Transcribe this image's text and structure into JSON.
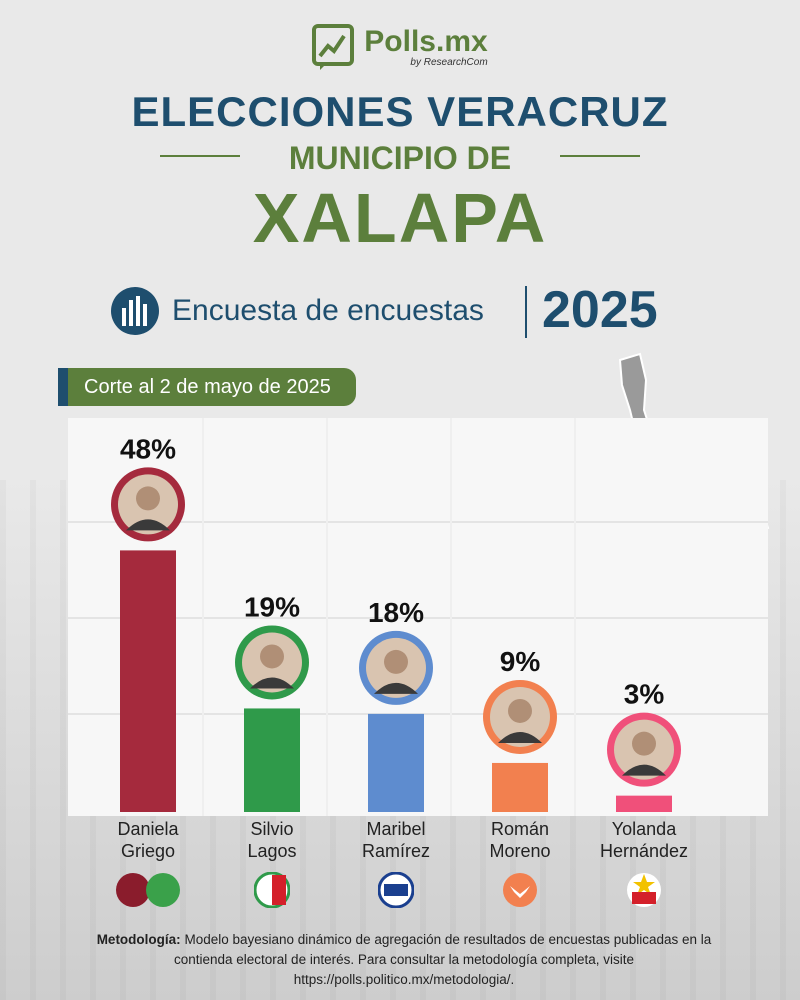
{
  "brand": {
    "name": "Polls.mx",
    "sub": "by ResearchCom"
  },
  "title": {
    "line1": "ELECCIONES VERACRUZ",
    "line2": "MUNICIPIO DE",
    "line3": "XALAPA"
  },
  "subtitle": {
    "text": "Encuesta de encuestas",
    "year": "2025"
  },
  "cutoff": "Corte al 2 de mayo de 2025",
  "colors": {
    "green": "#5c7f3c",
    "navy": "#1e4e6e",
    "morena": "#a52a3d",
    "pri": "#2f9a4a",
    "pan": "#5e8ccf",
    "mc": "#f2804f",
    "pt": "#f0507a"
  },
  "chart_data": {
    "type": "bar",
    "categories": [
      "Daniela Griego",
      "Silvio Lagos",
      "Maribel Ramírez",
      "Román Moreno",
      "Yolanda Hernández"
    ],
    "series": [
      {
        "values": [
          48,
          19,
          18,
          9,
          3
        ]
      }
    ],
    "value_labels": [
      "48%",
      "19%",
      "18%",
      "9%",
      "3%"
    ],
    "name_lines": [
      [
        "Daniela",
        "Griego"
      ],
      [
        "Silvio",
        "Lagos"
      ],
      [
        "Maribel",
        "Ramírez"
      ],
      [
        "Román",
        "Moreno"
      ],
      [
        "Yolanda",
        "Hernández"
      ]
    ],
    "parties": [
      "morena / VERDE",
      "PRI",
      "PAN",
      "MOVIMIENTO CIUDADANO",
      "PT"
    ],
    "bar_colors": [
      "#a52a3d",
      "#2f9a4a",
      "#5e8ccf",
      "#f2804f",
      "#f0507a"
    ],
    "ylim": [
      0,
      60
    ],
    "grid": true
  },
  "methodology": {
    "label": "Metodología:",
    "text": "Modelo bayesiano dinámico de agregación de resultados de encuestas publicadas en la contienda electoral de interés. Para consultar la metodología completa, visite https://polls.politico.mx/metodologia/."
  }
}
